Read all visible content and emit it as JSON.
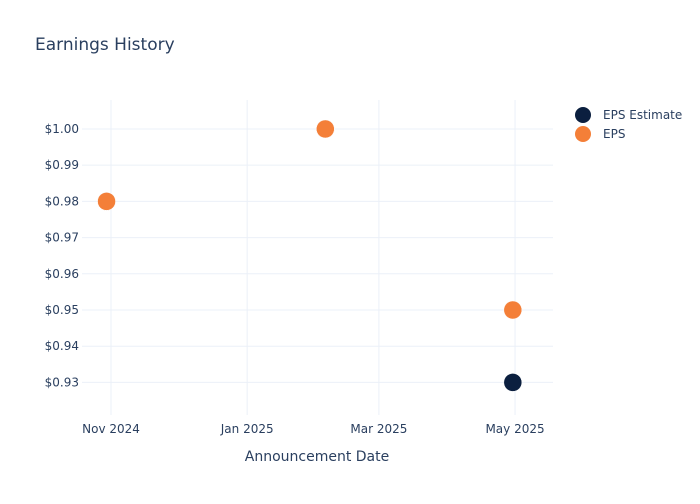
{
  "chart_data": {
    "type": "scatter",
    "title": "Earnings History",
    "xlabel": "Announcement Date",
    "ylabel": "",
    "x_ticks": [
      "Nov 2024",
      "Jan 2025",
      "Mar 2025",
      "May 2025"
    ],
    "x_tick_dates": [
      "2024-11-01",
      "2025-01-01",
      "2025-03-01",
      "2025-05-01"
    ],
    "y_ticks": [
      "$0.93",
      "$0.94",
      "$0.95",
      "$0.96",
      "$0.97",
      "$0.98",
      "$0.99",
      "$1.00"
    ],
    "y_tick_values": [
      0.93,
      0.94,
      0.95,
      0.96,
      0.97,
      0.98,
      0.99,
      1.0
    ],
    "xlim": [
      "2024-10-19",
      "2025-05-18"
    ],
    "ylim": [
      0.921,
      1.008
    ],
    "grid": true,
    "legend_position": "top-right",
    "series": [
      {
        "name": "EPS Estimate",
        "color": "#0b1f3f",
        "points": [
          {
            "x": "2024-10-30",
            "y": 0.98
          },
          {
            "x": "2025-02-05",
            "y": 1.0
          },
          {
            "x": "2025-04-30",
            "y": 0.93
          }
        ]
      },
      {
        "name": "EPS",
        "color": "#f47f38",
        "points": [
          {
            "x": "2024-10-30",
            "y": 0.98
          },
          {
            "x": "2025-02-05",
            "y": 1.0
          },
          {
            "x": "2025-04-30",
            "y": 0.95
          }
        ]
      }
    ]
  }
}
